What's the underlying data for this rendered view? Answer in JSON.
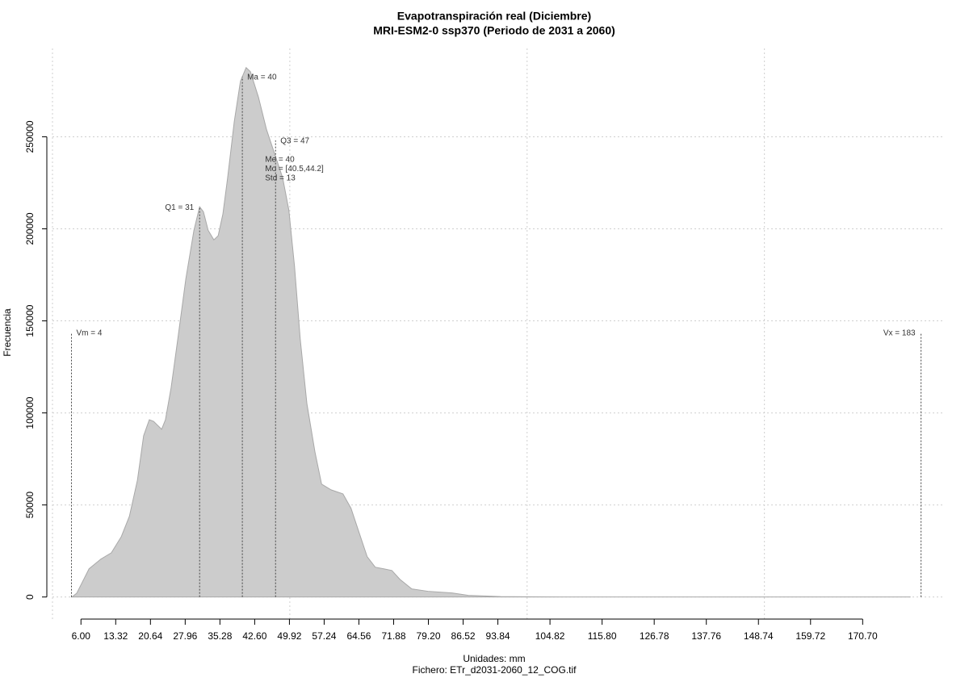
{
  "chart_data": {
    "type": "area",
    "title": "Evapotranspiración real (Diciembre)",
    "subtitle": "MRI-ESM2-0 ssp370 (Periodo de 2031 a 2060)",
    "xlabel": "Unidades: mm",
    "caption": "Fichero: ETr_d2031-2060_12_COG.tif",
    "ylabel": "Frecuencia",
    "color": "#cccccc",
    "x": [
      4.1,
      5.1,
      6,
      7.7,
      10.2,
      12.4,
      14.5,
      16.2,
      17.9,
      19.2,
      20.4,
      21.3,
      23,
      23.8,
      25,
      26.4,
      28.1,
      29.8,
      31,
      31.8,
      32.8,
      34,
      34.9,
      35.9,
      36.9,
      38.3,
      39.6,
      40.8,
      41.7,
      43.4,
      45.1,
      46.8,
      48.5,
      49.8,
      51,
      52.2,
      53.6,
      55.3,
      56.7,
      58.7,
      61.2,
      62.9,
      64.6,
      66.3,
      68,
      69.8,
      71.5,
      73.2,
      75.7,
      79.1,
      84.2,
      87.6,
      94.4,
      108,
      180.8
    ],
    "values": [
      0,
      2000,
      6600,
      15300,
      20600,
      24000,
      32800,
      43800,
      63500,
      87600,
      96300,
      95400,
      91100,
      96300,
      113800,
      140100,
      172900,
      199200,
      212000,
      209300,
      199200,
      194000,
      196200,
      208000,
      227700,
      258300,
      280200,
      287600,
      285400,
      271500,
      253900,
      240800,
      227700,
      210200,
      179500,
      140100,
      105100,
      78800,
      61300,
      58200,
      56000,
      48200,
      35000,
      21900,
      16200,
      15300,
      14400,
      9600,
      4400,
      3100,
      2200,
      900,
      200,
      0,
      0
    ],
    "xlim": [
      0,
      188
    ],
    "ylim": [
      -12000,
      298000
    ],
    "xticks": [
      {
        "value": 6,
        "label": "6.00"
      },
      13.32,
      20.64,
      27.96,
      35.28,
      {
        "value": 42.6,
        "label": "42.60"
      },
      49.92,
      57.24,
      64.56,
      71.88,
      {
        "value": 79.2,
        "label": "79.20"
      },
      86.52,
      93.84,
      104.82,
      {
        "value": 115.8,
        "label": "115.80"
      },
      126.78,
      137.76,
      148.74,
      159.72,
      {
        "value": 170.7,
        "label": "170.70"
      }
    ],
    "yticks": [
      0,
      50000,
      100000,
      150000,
      200000,
      250000
    ],
    "xgrid": [
      0,
      50,
      100,
      150
    ],
    "grid": true,
    "markers": [
      {
        "label": "Vm = 4",
        "value": 4
      },
      {
        "label": "Vx = 183",
        "value": 183
      },
      {
        "label": "Q1 = 31",
        "value": 31
      },
      {
        "label": "Ma = 40",
        "value": 40
      },
      {
        "label": "Q3 = 47",
        "value": 47
      }
    ],
    "stats": [
      "Me = 40",
      "Mo = [40.5,44.2]",
      "Std = 13"
    ]
  }
}
